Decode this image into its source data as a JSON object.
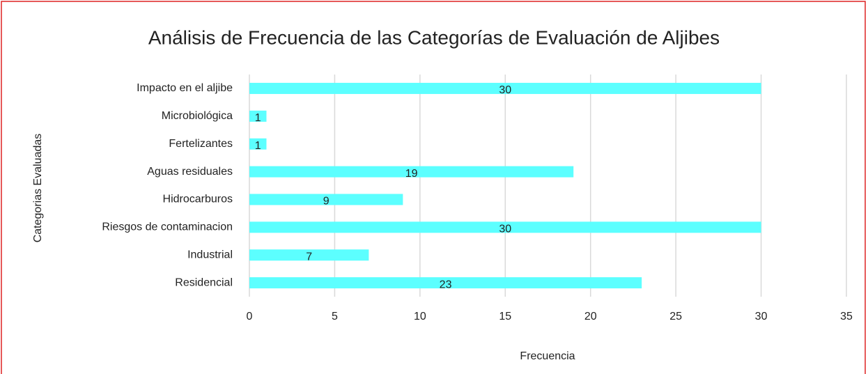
{
  "chart_data": {
    "type": "bar",
    "orientation": "horizontal",
    "title": "Análisis de Frecuencia de las Categorías de Evaluación de Aljibes",
    "x_label": "Frecuencia",
    "y_label": "Categorias Evaluadas",
    "categories": [
      "Impacto en el aljibe",
      "Microbiológica",
      "Fertelizantes",
      "Aguas residuales",
      "Hidrocarburos",
      "Riesgos de contaminacion",
      "Industrial",
      "Residencial"
    ],
    "values": [
      30,
      1,
      1,
      19,
      9,
      30,
      7,
      23
    ],
    "color": "#5cffff",
    "xlim": [
      0,
      35
    ],
    "xticks": [
      0,
      5,
      10,
      15,
      20,
      25,
      30,
      35
    ],
    "grid": true
  }
}
